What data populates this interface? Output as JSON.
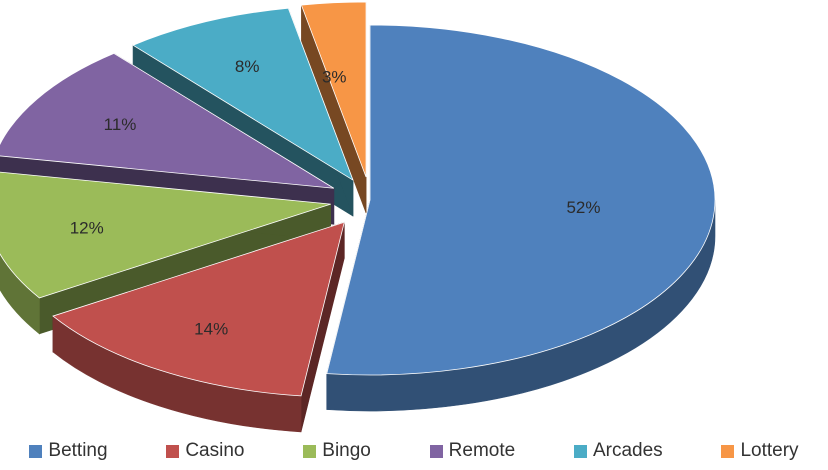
{
  "chart_data": {
    "type": "pie",
    "style": "3d exploded",
    "legend_position": "bottom",
    "slices": [
      {
        "name": "Betting",
        "value": 52,
        "label": "52%",
        "color": "#4f81bd"
      },
      {
        "name": "Casino",
        "value": 14,
        "label": "14%",
        "color": "#c0504d"
      },
      {
        "name": "Bingo",
        "value": 12,
        "label": "12%",
        "color": "#9bbb59"
      },
      {
        "name": "Remote",
        "value": 11,
        "label": "11%",
        "color": "#8064a2"
      },
      {
        "name": "Arcades",
        "value": 8,
        "label": "8%",
        "color": "#4bacc6"
      },
      {
        "name": "Lottery",
        "value": 3,
        "label": "3%",
        "color": "#f79646"
      }
    ]
  }
}
